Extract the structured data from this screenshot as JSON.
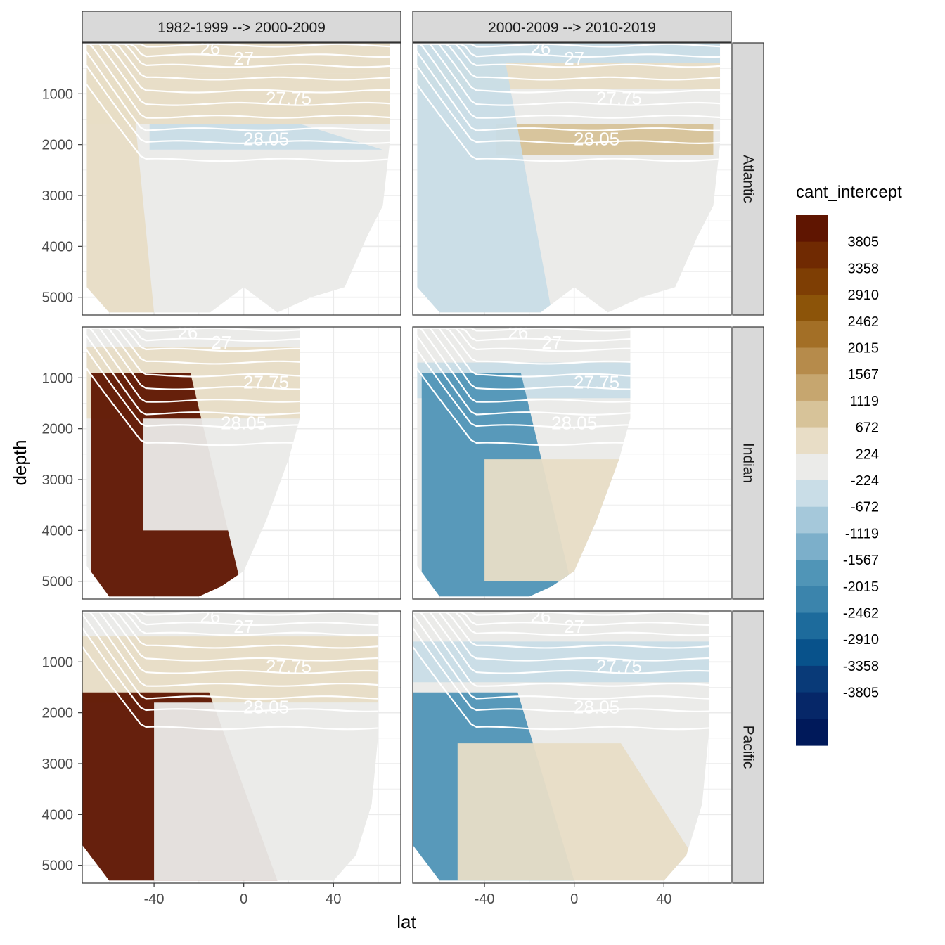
{
  "chart_data": {
    "type": "heatmap",
    "subtype": "faceted filled contour (zonal section)",
    "xlabel": "lat",
    "ylabel": "depth",
    "xlim": [
      -72,
      70
    ],
    "ylim": [
      5350,
      0
    ],
    "y_reversed": true,
    "x_ticks": [
      -40,
      0,
      40
    ],
    "y_ticks": [
      1000,
      2000,
      3000,
      4000,
      5000
    ],
    "grid": "on",
    "legend_position": "right",
    "legend": {
      "title": "cant_intercept",
      "levels": [
        "3805",
        "3358",
        "2910",
        "2462",
        "2015",
        "1567",
        "1119",
        "672",
        "224",
        "-224",
        "-672",
        "-1119",
        "-1567",
        "-2015",
        "-2462",
        "-2910",
        "-3358",
        "-3805"
      ],
      "colors": [
        "#5f1501",
        "#702a02",
        "#7e3e04",
        "#8c5409",
        "#a36f26",
        "#b68b4b",
        "#c6a66f",
        "#d7c399",
        "#e8ddc6",
        "#ebebe9",
        "#c9dde7",
        "#a5c8da",
        "#7cafca",
        "#5095b7",
        "#3b84ac",
        "#1d6b9c",
        "#08528b",
        "#093a78",
        "#062768",
        "#00195a"
      ]
    },
    "columns": [
      "1982-1999 --> 2000-2009",
      "2000-2009 --> 2010-2019"
    ],
    "rows": [
      "Atlantic",
      "Indian",
      "Pacific"
    ],
    "isopycnal_labels": [
      "26",
      "27",
      "27.75",
      "28.05"
    ],
    "panels": [
      {
        "row": "Atlantic",
        "column": "1982-1999 --> 2000-2009",
        "lat_range": [
          -70,
          65
        ],
        "regions": [
          {
            "value_range": [
              224,
              672
            ],
            "depth": "0-600"
          },
          {
            "value_range": [
              224,
              672
            ],
            "depth": "600-1600"
          },
          {
            "value_range": [
              -672,
              -224
            ],
            "lat": [
              -42,
              62
            ],
            "depth": "1600-2100"
          },
          {
            "value_range": [
              224,
              672
            ],
            "lat": [
              -70,
              -40
            ],
            "depth": "600-5300"
          },
          {
            "value_range": [
              -224,
              224
            ],
            "lat": [
              -40,
              62
            ],
            "depth": "2100-5300"
          }
        ]
      },
      {
        "row": "Atlantic",
        "column": "2000-2009 --> 2010-2019",
        "lat_range": [
          -70,
          65
        ],
        "regions": [
          {
            "value_range": [
              -672,
              -224
            ],
            "depth": "0-400"
          },
          {
            "value_range": [
              224,
              672
            ],
            "depth": "400-900"
          },
          {
            "value_range": [
              672,
              1119
            ],
            "lat": [
              -35,
              62
            ],
            "depth": "1600-2200"
          },
          {
            "value_range": [
              -672,
              -224
            ],
            "lat": [
              -70,
              -10
            ],
            "depth": "300-5300"
          },
          {
            "value_range": [
              -224,
              224
            ],
            "lat": [
              -10,
              62
            ],
            "depth": "2400-5300"
          }
        ]
      },
      {
        "row": "Indian",
        "column": "1982-1999 --> 2000-2009",
        "lat_range": [
          -70,
          25
        ],
        "regions": [
          {
            "value_range": [
              224,
              672
            ],
            "depth": "400-1800"
          },
          {
            "value_range": [
              3805,
              4252
            ],
            "lat": [
              -68,
              0
            ],
            "depth": "900-5300"
          },
          {
            "value_range": [
              -224,
              224
            ],
            "lat": [
              -45,
              25
            ],
            "depth": "1800-4000"
          }
        ]
      },
      {
        "row": "Indian",
        "column": "2000-2009 --> 2010-2019",
        "lat_range": [
          -70,
          25
        ],
        "regions": [
          {
            "value_range": [
              -672,
              -224
            ],
            "depth": "700-1400"
          },
          {
            "value_range": [
              -2015,
              -1567
            ],
            "lat": [
              -68,
              0
            ],
            "depth": "900-5300"
          },
          {
            "value_range": [
              224,
              672
            ],
            "lat": [
              -40,
              23
            ],
            "depth": "2600-5000"
          }
        ]
      },
      {
        "row": "Pacific",
        "column": "2000-2009 --> 2010-2019",
        "lat_range": [
          -72,
          60
        ],
        "regions": [
          {
            "value_range": [
              -672,
              -224
            ],
            "depth": "600-1400"
          },
          {
            "value_range": [
              -2015,
              -1567
            ],
            "lat": [
              -72,
              0
            ],
            "depth": "1600-5300"
          },
          {
            "value_range": [
              224,
              672
            ],
            "lat": [
              -52,
              60
            ],
            "depth": "2600-5300"
          }
        ]
      },
      {
        "row": "Pacific",
        "column": "1982-1999 --> 2000-2009",
        "lat_range": [
          -72,
          60
        ],
        "regions": [
          {
            "value_range": [
              224,
              672
            ],
            "depth": "500-1800"
          },
          {
            "value_range": [
              3805,
              4252
            ],
            "lat": [
              -72,
              15
            ],
            "depth": "1600-5300"
          },
          {
            "value_range": [
              -224,
              224
            ],
            "lat": [
              -40,
              60
            ],
            "depth": "1800-5300"
          }
        ]
      }
    ]
  }
}
